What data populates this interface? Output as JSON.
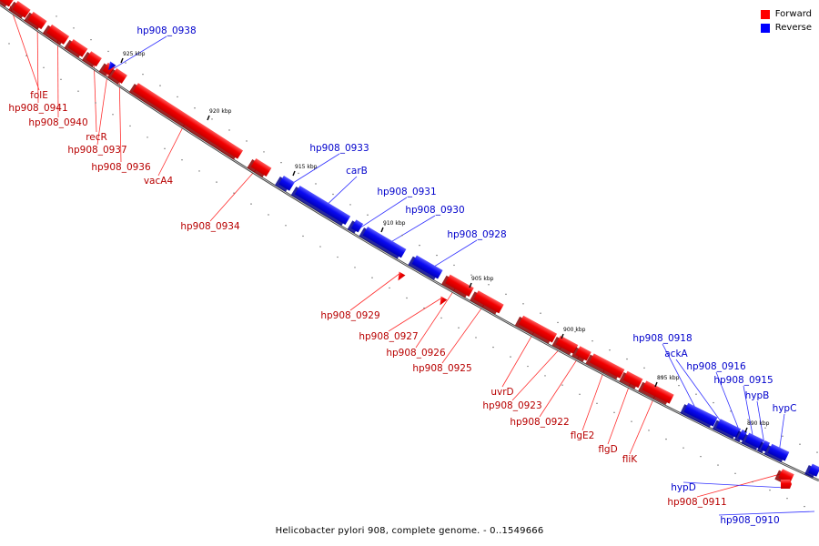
{
  "legend": {
    "forward_label": "Forward",
    "reverse_label": "Reverse",
    "forward_color": "#ff0000",
    "reverse_color": "#0000ff"
  },
  "footer": "Helicobacter pylori 908, complete genome. - 0..1549666",
  "ticks": [
    "925 kbp",
    "920 kbp",
    "915 kbp",
    "910 kbp",
    "905 kbp",
    "900 kbp",
    "895 kbp",
    "890 kbp"
  ],
  "genes": [
    {
      "name": "folE",
      "strand": "forward"
    },
    {
      "name": "hp908_0941",
      "strand": "forward"
    },
    {
      "name": "hp908_0940",
      "strand": "forward"
    },
    {
      "name": "recR",
      "strand": "forward"
    },
    {
      "name": "hp908_0937",
      "strand": "forward"
    },
    {
      "name": "hp908_0936",
      "strand": "forward"
    },
    {
      "name": "vacA4",
      "strand": "forward"
    },
    {
      "name": "hp908_0934",
      "strand": "forward"
    },
    {
      "name": "hp908_0929",
      "strand": "forward"
    },
    {
      "name": "hp908_0927",
      "strand": "forward"
    },
    {
      "name": "hp908_0926",
      "strand": "forward"
    },
    {
      "name": "hp908_0925",
      "strand": "forward"
    },
    {
      "name": "uvrD",
      "strand": "forward"
    },
    {
      "name": "hp908_0923",
      "strand": "forward"
    },
    {
      "name": "hp908_0922",
      "strand": "forward"
    },
    {
      "name": "flgE2",
      "strand": "forward"
    },
    {
      "name": "flgD",
      "strand": "forward"
    },
    {
      "name": "fliK",
      "strand": "forward"
    },
    {
      "name": "hp908_0911",
      "strand": "forward"
    },
    {
      "name": "hp908_0938",
      "strand": "reverse"
    },
    {
      "name": "hp908_0933",
      "strand": "reverse"
    },
    {
      "name": "carB",
      "strand": "reverse"
    },
    {
      "name": "hp908_0931",
      "strand": "reverse"
    },
    {
      "name": "hp908_0930",
      "strand": "reverse"
    },
    {
      "name": "hp908_0928",
      "strand": "reverse"
    },
    {
      "name": "hp908_0918",
      "strand": "reverse"
    },
    {
      "name": "ackA",
      "strand": "reverse"
    },
    {
      "name": "hp908_0916",
      "strand": "reverse"
    },
    {
      "name": "hp908_0915",
      "strand": "reverse"
    },
    {
      "name": "hypB",
      "strand": "reverse"
    },
    {
      "name": "hypC",
      "strand": "reverse"
    },
    {
      "name": "hypD",
      "strand": "reverse"
    },
    {
      "name": "hp908_0910",
      "strand": "reverse"
    }
  ]
}
